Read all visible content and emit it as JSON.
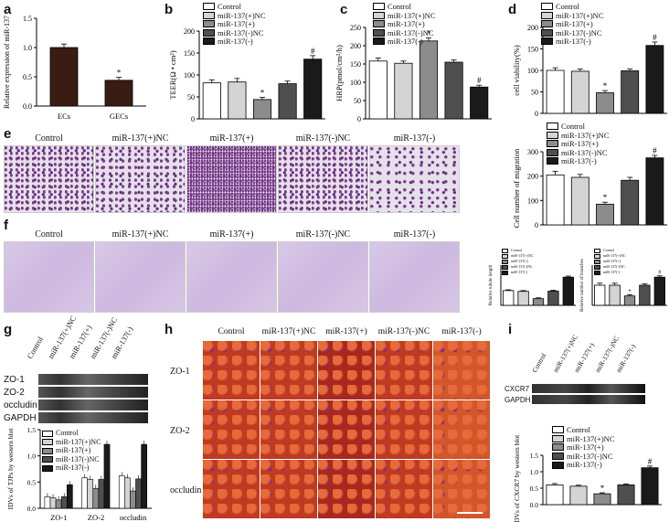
{
  "colors": {
    "c0": "#ffffff",
    "c1": "#d4d4d4",
    "c2": "#8c8c8c",
    "c3": "#4f4f4f",
    "c4": "#1a1a1a",
    "bar_a": "#3a1c12"
  },
  "panels": {
    "a": "a",
    "b": "b",
    "c": "c",
    "d": "d",
    "e": "e",
    "f": "f",
    "g": "g",
    "h": "h",
    "i": "i"
  },
  "legend": [
    "Control",
    "miR-137(+)NC",
    "miR-137(+)",
    "miR-137(-)NC",
    "miR-137(-)"
  ],
  "legend_i": [
    "Control",
    "miR-137(+)NC",
    "miR-137(+)",
    "miR-137(-)NC",
    "miR-137(-)"
  ],
  "groups": [
    "Control",
    "miR-137(+)NC",
    "miR-137(+)",
    "miR-137(-)NC",
    "miR-137(-)"
  ],
  "proteins": [
    "ZO-1",
    "ZO-2",
    "occludin",
    "GAPDH"
  ],
  "h_rows": [
    "ZO-1",
    "ZO-2",
    "occludin"
  ],
  "i_proteins": [
    "CXCR7",
    "GAPDH"
  ],
  "chart_data": [
    {
      "panel": "a",
      "type": "bar",
      "categories": [
        "ECs",
        "GECs"
      ],
      "values": [
        1.0,
        0.44
      ],
      "errors": [
        0.06,
        0.05
      ],
      "marks": [
        "",
        "*"
      ],
      "ylabel": "Relative expression of miR-137",
      "ylim": [
        0,
        1.5
      ],
      "yticks": [
        "0.0",
        "0.5",
        "1.0",
        "1.5"
      ]
    },
    {
      "panel": "b",
      "type": "bar",
      "values": [
        82,
        84,
        44,
        80,
        136
      ],
      "errors": [
        7,
        8,
        5,
        6,
        8
      ],
      "marks": [
        "",
        "",
        "*",
        "",
        "#"
      ],
      "ylabel": "TEER(Ω • cm²)",
      "ylim": [
        0,
        200
      ],
      "yticks": [
        "0",
        "50",
        "100",
        "150",
        "200"
      ]
    },
    {
      "panel": "c",
      "type": "bar",
      "values": [
        158,
        152,
        213,
        155,
        87
      ],
      "errors": [
        8,
        6,
        8,
        6,
        5
      ],
      "marks": [
        "",
        "",
        "*",
        "",
        "#"
      ],
      "ylabel": "HRP(pmol/cm²/h)",
      "ylim": [
        0,
        250
      ],
      "yticks": [
        "0",
        "50",
        "100",
        "150",
        "200",
        "250"
      ]
    },
    {
      "panel": "d1",
      "type": "bar",
      "values": [
        100,
        98,
        48,
        99,
        158
      ],
      "errors": [
        6,
        5,
        5,
        4,
        8
      ],
      "marks": [
        "",
        "",
        "*",
        "",
        "#"
      ],
      "ylabel": "cell viability(%)",
      "ylim": [
        0,
        200
      ],
      "yticks": [
        "0",
        "50",
        "100",
        "150",
        "200"
      ]
    },
    {
      "panel": "d2",
      "type": "bar",
      "values": [
        205,
        195,
        85,
        183,
        275
      ],
      "errors": [
        15,
        12,
        8,
        12,
        10
      ],
      "marks": [
        "",
        "",
        "*",
        "",
        "#"
      ],
      "ylabel": "Cell number of migration",
      "ylim": [
        0,
        300
      ],
      "yticks": [
        "0",
        "100",
        "200",
        "300"
      ]
    },
    {
      "panel": "f1",
      "type": "bar",
      "values": [
        55,
        52,
        25,
        53,
        105
      ],
      "errors": [
        3,
        3,
        3,
        3,
        4
      ],
      "marks": [
        "",
        "",
        "",
        "",
        ""
      ],
      "ylabel": "Relative tubule length",
      "ylim": [
        0,
        150
      ]
    },
    {
      "panel": "f2",
      "type": "bar",
      "values": [
        15,
        15,
        7,
        15,
        21
      ],
      "errors": [
        1.5,
        1.5,
        1,
        1,
        1
      ],
      "marks": [
        "",
        "",
        "*",
        "",
        "#"
      ],
      "ylabel": "Relative number of branches",
      "ylim": [
        0,
        30
      ]
    },
    {
      "panel": "g",
      "type": "bar",
      "categories": [
        "ZO-1",
        "ZO-2",
        "occludin"
      ],
      "series": [
        {
          "name": "Control",
          "values": [
            0.22,
            0.58,
            0.62
          ]
        },
        {
          "name": "miR-137(+)NC",
          "values": [
            0.2,
            0.55,
            0.58
          ]
        },
        {
          "name": "miR-137(+)",
          "values": [
            0.16,
            0.38,
            0.33
          ]
        },
        {
          "name": "miR-137(-)NC",
          "values": [
            0.22,
            0.55,
            0.56
          ]
        },
        {
          "name": "miR-137(-)",
          "values": [
            0.45,
            1.22,
            1.22
          ]
        }
      ],
      "ylabel": "IDVs of TJPs by western blot",
      "ylim": [
        0,
        1.5
      ],
      "yticks": [
        "0.0",
        "0.5",
        "1.0",
        "1.5"
      ]
    },
    {
      "panel": "i",
      "type": "bar",
      "values": [
        0.6,
        0.56,
        0.33,
        0.6,
        1.12
      ],
      "errors": [
        0.04,
        0.03,
        0.03,
        0.03,
        0.05
      ],
      "marks": [
        "",
        "",
        "*",
        "",
        "#"
      ],
      "ylabel": "IDVs of CXCR7 by western blot",
      "ylim": [
        0,
        1.5
      ],
      "yticks": [
        "0.0",
        "0.5",
        "1.0",
        "1.5"
      ]
    }
  ]
}
